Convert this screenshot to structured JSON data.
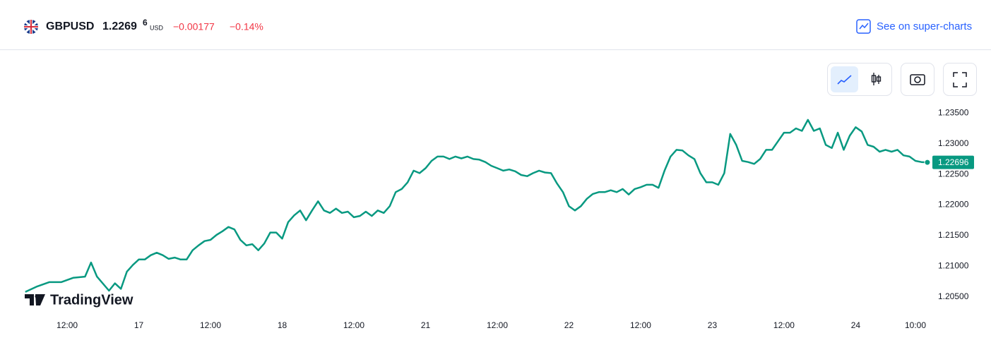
{
  "header": {
    "symbol": "GBPUSD",
    "price_main": "1.2269",
    "price_pip": "6",
    "currency": "USD",
    "change": "−0.00177",
    "change_percent": "−0.14%",
    "link_text": "See on super-charts"
  },
  "watermark": "TradingView",
  "chart_data": {
    "type": "line",
    "color": "#089981",
    "grid": false,
    "x": [
      5,
      7,
      9,
      11,
      13,
      15,
      16,
      17,
      19,
      20,
      21,
      22,
      23,
      24,
      25,
      26,
      27,
      28,
      29,
      30,
      31,
      32,
      33,
      34,
      35,
      36,
      37,
      38,
      39,
      40,
      41,
      42,
      43,
      44,
      45,
      46,
      47,
      48,
      49,
      50,
      51,
      52,
      53,
      54,
      55,
      56,
      57,
      58,
      59,
      60,
      61,
      62,
      63,
      64,
      65,
      66,
      67,
      68,
      69,
      70,
      71,
      72,
      73,
      74,
      75,
      76,
      77,
      78,
      79,
      80,
      81,
      82,
      83,
      84,
      85,
      86,
      87,
      88,
      89,
      90,
      91,
      92,
      93,
      94,
      95,
      96,
      97,
      98,
      99,
      100,
      101,
      102,
      103,
      104,
      105,
      106,
      107,
      108,
      109,
      110,
      111,
      112,
      113,
      114,
      115,
      116,
      117,
      118,
      119,
      120,
      121,
      122,
      123,
      124,
      125,
      126,
      127,
      128,
      129,
      130,
      131,
      132,
      133,
      134,
      135,
      136,
      137,
      138,
      139,
      140,
      141,
      142,
      143,
      144,
      145,
      146,
      147,
      148,
      149,
      150,
      151,
      152,
      153,
      154,
      155,
      156
    ],
    "series": [
      {
        "name": "GBPUSD",
        "color": "#089981",
        "values": [
          1.2058,
          1.2067,
          1.2074,
          1.2074,
          1.2081,
          1.2083,
          1.2106,
          1.2083,
          1.206,
          1.2072,
          1.2063,
          1.2091,
          1.2102,
          1.2111,
          1.2111,
          1.2118,
          1.2122,
          1.2118,
          1.2112,
          1.2114,
          1.2111,
          1.2111,
          1.2126,
          1.2134,
          1.2141,
          1.2143,
          1.2151,
          1.2157,
          1.2164,
          1.216,
          1.2143,
          1.2134,
          1.2136,
          1.2126,
          1.2137,
          1.2155,
          1.2155,
          1.2145,
          1.2172,
          1.2183,
          1.2191,
          1.2175,
          1.2191,
          1.2206,
          1.2191,
          1.2187,
          1.2194,
          1.2187,
          1.2189,
          1.218,
          1.2182,
          1.2189,
          1.2182,
          1.2191,
          1.2187,
          1.2198,
          1.2221,
          1.2226,
          1.2237,
          1.2256,
          1.2252,
          1.226,
          1.2272,
          1.2279,
          1.2279,
          1.2275,
          1.2279,
          1.2276,
          1.2279,
          1.2275,
          1.2274,
          1.227,
          1.2264,
          1.226,
          1.2256,
          1.2258,
          1.2255,
          1.2249,
          1.2247,
          1.2252,
          1.2256,
          1.2253,
          1.2252,
          1.2235,
          1.2221,
          1.2198,
          1.2191,
          1.2198,
          1.221,
          1.2218,
          1.2221,
          1.2221,
          1.2224,
          1.2221,
          1.2226,
          1.2217,
          1.2226,
          1.2229,
          1.2233,
          1.2233,
          1.2228,
          1.2256,
          1.2279,
          1.229,
          1.2289,
          1.2281,
          1.2275,
          1.2252,
          1.2237,
          1.2237,
          1.2233,
          1.2252,
          1.2316,
          1.2298,
          1.2272,
          1.227,
          1.2267,
          1.2275,
          1.229,
          1.229,
          1.2304,
          1.2318,
          1.2318,
          1.2325,
          1.2321,
          1.2339,
          1.2321,
          1.2325,
          1.2298,
          1.2293,
          1.2318,
          1.229,
          1.2313,
          1.2327,
          1.232,
          1.2298,
          1.2295,
          1.2287,
          1.229,
          1.2287,
          1.229,
          1.2281,
          1.2279,
          1.2272,
          1.227,
          1.22696
        ]
      }
    ],
    "xlim": [
      4.9,
      156.6
    ],
    "xticks": [
      {
        "value": 12,
        "label": "12:00"
      },
      {
        "value": 24,
        "label": "17"
      },
      {
        "value": 36,
        "label": "12:00"
      },
      {
        "value": 48,
        "label": "18"
      },
      {
        "value": 60,
        "label": "12:00"
      },
      {
        "value": 72,
        "label": "21"
      },
      {
        "value": 84,
        "label": "12:00"
      },
      {
        "value": 96,
        "label": "22"
      },
      {
        "value": 108,
        "label": "12:00"
      },
      {
        "value": 120,
        "label": "23"
      },
      {
        "value": 132,
        "label": "12:00"
      },
      {
        "value": 144,
        "label": "24"
      },
      {
        "value": 154,
        "label": "10:00"
      }
    ],
    "ylim": [
      1.2022,
      1.2431
    ],
    "yticks": [
      {
        "value": 1.205,
        "label": "1.20500"
      },
      {
        "value": 1.21,
        "label": "1.21000"
      },
      {
        "value": 1.215,
        "label": "1.21500"
      },
      {
        "value": 1.22,
        "label": "1.22000"
      },
      {
        "value": 1.225,
        "label": "1.22500"
      },
      {
        "value": 1.23,
        "label": "1.23000"
      },
      {
        "value": 1.235,
        "label": "1.23500"
      }
    ]
  }
}
